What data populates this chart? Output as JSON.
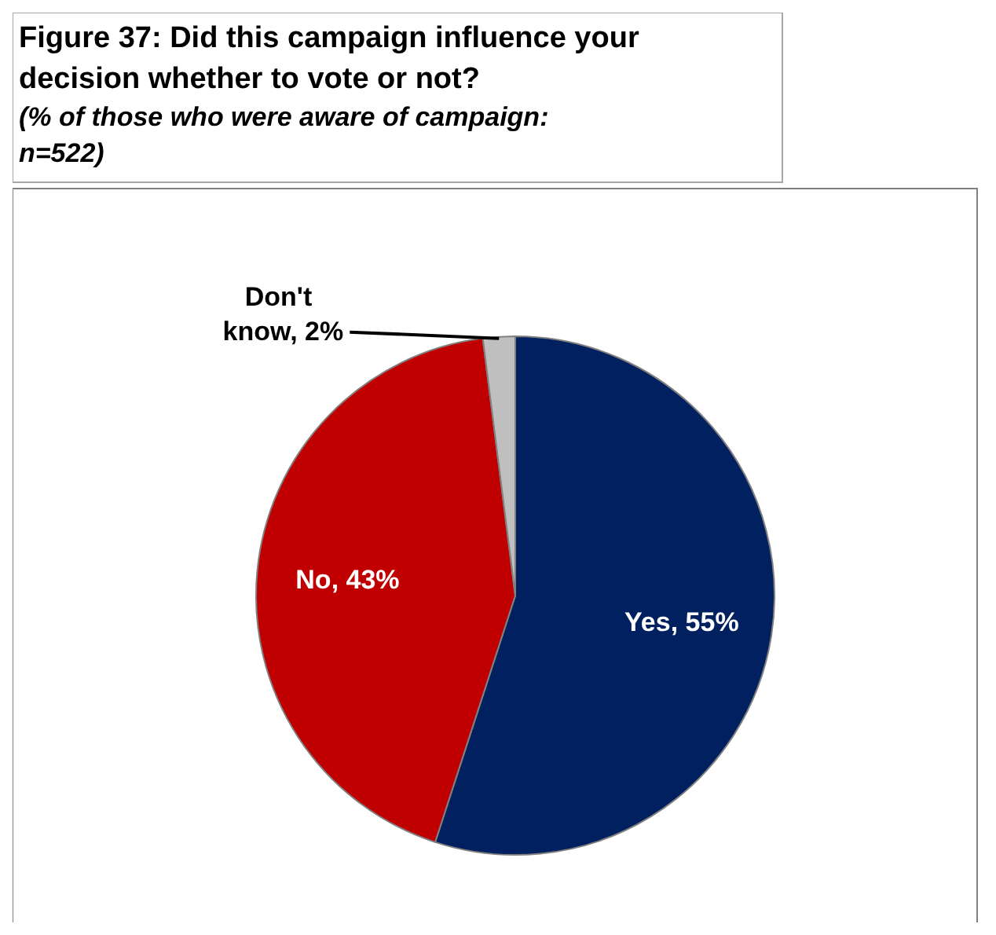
{
  "chart_data": {
    "type": "pie",
    "title": "Figure 37: Did this campaign influence your decision whether to vote or not?",
    "subtitle": "(% of those who were aware of campaign: n=522)",
    "categories": [
      "Yes",
      "No",
      "Don't know"
    ],
    "values": [
      55,
      43,
      2
    ],
    "colors": [
      "#002060",
      "#c00000",
      "#bfbfbf"
    ],
    "value_labels": [
      "55%",
      "43%",
      "2%"
    ],
    "legend": false
  }
}
